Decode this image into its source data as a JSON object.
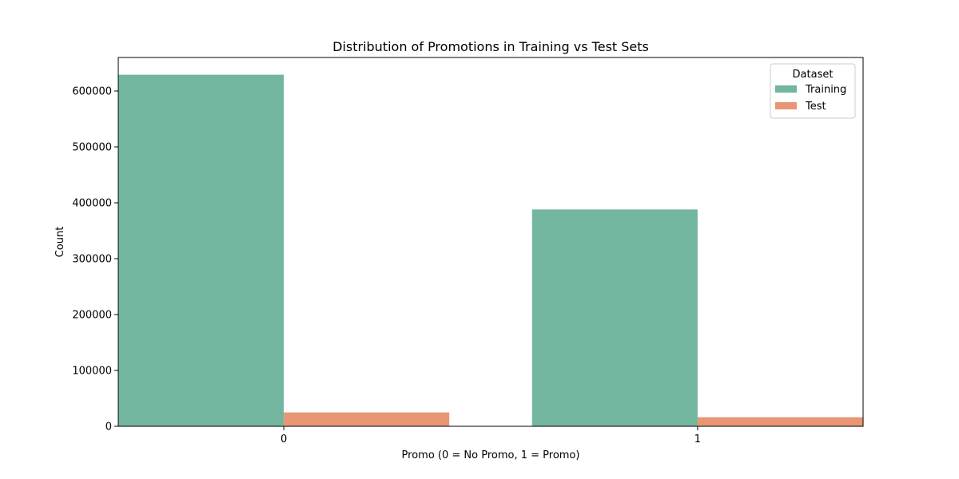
{
  "chart_data": {
    "type": "bar",
    "title": "Distribution of Promotions in Training vs Test Sets",
    "xlabel": "Promo (0 = No Promo, 1 = Promo)",
    "ylabel": "Count",
    "categories": [
      "0",
      "1"
    ],
    "series": [
      {
        "name": "Training",
        "values": [
          629129,
          388080
        ],
        "color": "#73b6a0"
      },
      {
        "name": "Test",
        "values": [
          24824,
          16264
        ],
        "color": "#e99675"
      }
    ],
    "ylim": [
      0,
      660000
    ],
    "yticks": [
      0,
      100000,
      200000,
      300000,
      400000,
      500000,
      600000
    ],
    "ytick_labels": [
      "0",
      "100000",
      "200000",
      "300000",
      "400000",
      "500000",
      "600000"
    ],
    "grid": false,
    "legend": {
      "title": "Dataset",
      "position": "top-right"
    }
  }
}
